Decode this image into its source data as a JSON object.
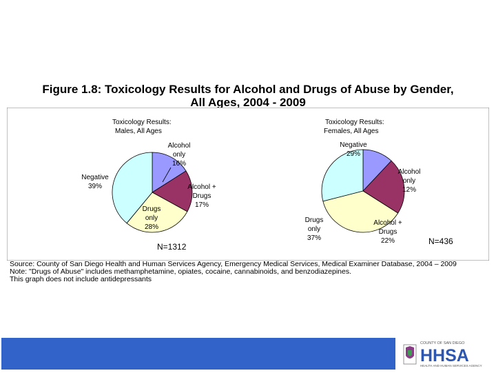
{
  "title": {
    "line1": "Figure 1.8: Toxicology Results for Alcohol and Drugs of Abuse by Gender,",
    "line2": "All Ages, 2004 - 2009"
  },
  "chart_data": [
    {
      "type": "pie",
      "title_line1": "Toxicology Results:",
      "title_line2": "Males, All Ages",
      "n_label": "N=1312",
      "slices": [
        {
          "key": "alcohol",
          "label_lines": [
            "Alcohol",
            "only"
          ],
          "pct_label": "16%",
          "value": 16,
          "color": "#9999ff"
        },
        {
          "key": "alcdrugs",
          "label_lines": [
            "Alcohol +",
            "Drugs"
          ],
          "pct_label": "17%",
          "value": 17,
          "color": "#993366"
        },
        {
          "key": "drugs",
          "label_lines": [
            "Drugs",
            "only"
          ],
          "pct_label": "28%",
          "value": 28,
          "color": "#ffffcc"
        },
        {
          "key": "negative",
          "label_lines": [
            "Negative"
          ],
          "pct_label": "39%",
          "value": 39,
          "color": "#ccffff"
        }
      ]
    },
    {
      "type": "pie",
      "title_line1": "Toxicology Results:",
      "title_line2": "Females, All Ages",
      "n_label": "N=436",
      "slices": [
        {
          "key": "alcohol",
          "label_lines": [
            "Alcohol",
            "only"
          ],
          "pct_label": "12%",
          "value": 12,
          "color": "#9999ff"
        },
        {
          "key": "alcdrugs",
          "label_lines": [
            "Alcohol +",
            "Drugs"
          ],
          "pct_label": "22%",
          "value": 22,
          "color": "#993366"
        },
        {
          "key": "drugs",
          "label_lines": [
            "Drugs",
            "only"
          ],
          "pct_label": "37%",
          "value": 37,
          "color": "#ffffcc"
        },
        {
          "key": "negative",
          "label_lines": [
            "Negative"
          ],
          "pct_label": "29%",
          "value": 29,
          "color": "#ccffff"
        }
      ]
    }
  ],
  "notes": {
    "source": "Source: County of San Diego Health and Human Services Agency, Emergency Medical Services, Medical Examiner Database, 2004 – 2009",
    "note": "Note: \"Drugs of Abuse\" includes methamphetamine, opiates, cocaine, cannabinoids, and benzodiazepines.",
    "extra": "This graph does not include antidepressants"
  },
  "logo": {
    "top": "COUNTY OF SAN DIEGO",
    "main": "HHSA",
    "bottom": "HEALTH AND HUMAN SERVICES AGENCY"
  },
  "colors": {
    "band": "#3163c8",
    "logo_main": "#2d56b0"
  }
}
